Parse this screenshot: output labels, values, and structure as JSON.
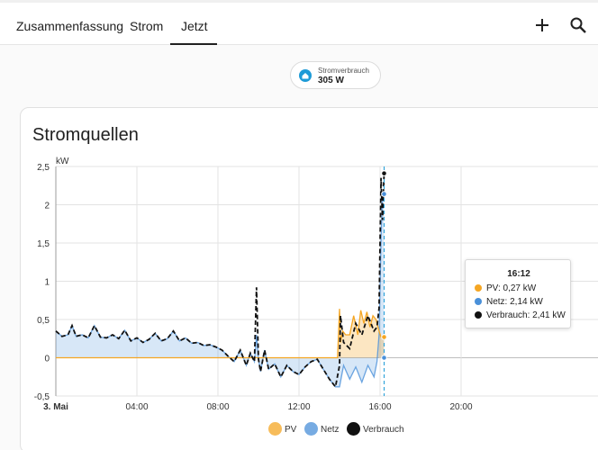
{
  "tabs": [
    {
      "label": "Zusammenfassung",
      "active": false
    },
    {
      "label": "Strom",
      "active": false
    },
    {
      "label": "Jetzt",
      "active": true
    }
  ],
  "toolbar": {
    "add_icon": "plus-icon",
    "search_icon": "search-icon"
  },
  "badge": {
    "label": "Stromverbrauch",
    "value": "305 W",
    "icon": "home-icon",
    "icon_color": "#1e9bd7"
  },
  "card": {
    "title": "Stromquellen"
  },
  "tooltip": {
    "time": "16:12",
    "rows": [
      {
        "color": "#f5a623",
        "text": "PV: 0,27 kW"
      },
      {
        "color": "#4a90d9",
        "text": "Netz: 2,14 kW"
      },
      {
        "color": "#111111",
        "text": "Verbrauch: 2,41 kW"
      }
    ]
  },
  "legend": [
    {
      "label": "PV",
      "color": "#f5a623"
    },
    {
      "label": "Netz",
      "color": "#4a90d9"
    },
    {
      "label": "Verbrauch",
      "color": "#111111"
    }
  ],
  "chart_data": {
    "type": "line",
    "ylabel": "kW",
    "ylim": [
      -0.5,
      2.5
    ],
    "xlim": [
      0,
      24
    ],
    "y_ticks": [
      "2,5",
      "2",
      "1,5",
      "1",
      "0,5",
      "0",
      "-0,5"
    ],
    "x_ticks": [
      "3. Mai",
      "04:00",
      "08:00",
      "12:00",
      "16:00",
      "20:00"
    ],
    "grid": true,
    "legend_placement": "bottom",
    "cursor_time_hours": 16.2,
    "series": [
      {
        "name": "PV",
        "color": "#f5a623",
        "x": [
          0,
          13.9,
          14.0,
          14.05,
          14.15,
          14.3,
          14.5,
          14.7,
          14.9,
          15.05,
          15.2,
          15.35,
          15.5,
          15.65,
          15.8,
          15.95,
          16.05,
          16.2
        ],
        "y": [
          0,
          0,
          0.64,
          0.2,
          0.35,
          0.3,
          0.3,
          0.55,
          0.3,
          0.62,
          0.45,
          0.6,
          0.4,
          0.55,
          0.5,
          0.35,
          0.27,
          0.27
        ]
      },
      {
        "name": "Netz",
        "color": "#4a90d9",
        "x": [
          0,
          0.3,
          0.6,
          0.8,
          1.0,
          1.3,
          1.6,
          1.9,
          2.2,
          2.5,
          2.8,
          3.1,
          3.4,
          3.7,
          4.0,
          4.3,
          4.6,
          4.9,
          5.2,
          5.5,
          5.8,
          6.1,
          6.4,
          6.7,
          7.0,
          7.3,
          7.6,
          7.9,
          8.2,
          8.5,
          8.8,
          9.1,
          9.4,
          9.6,
          9.8,
          9.9,
          10.0,
          10.1,
          10.3,
          10.5,
          10.8,
          11.1,
          11.4,
          11.7,
          12.0,
          12.3,
          12.6,
          12.9,
          13.2,
          13.5,
          13.8,
          14.0,
          14.2,
          14.5,
          14.8,
          15.1,
          15.4,
          15.7,
          15.85,
          15.95,
          16.05,
          16.12,
          16.2
        ],
        "y": [
          0.35,
          0.28,
          0.3,
          0.42,
          0.28,
          0.3,
          0.26,
          0.42,
          0.27,
          0.26,
          0.3,
          0.25,
          0.36,
          0.22,
          0.26,
          0.2,
          0.24,
          0.32,
          0.22,
          0.25,
          0.35,
          0.22,
          0.26,
          0.19,
          0.2,
          0.16,
          0.17,
          0.14,
          0.1,
          0.02,
          -0.05,
          0.1,
          -0.1,
          0.06,
          -0.05,
          0.3,
          -0.02,
          -0.18,
          0.1,
          -0.15,
          -0.08,
          -0.25,
          -0.1,
          -0.18,
          -0.22,
          -0.12,
          -0.05,
          -0.02,
          -0.15,
          -0.28,
          -0.38,
          -0.38,
          -0.1,
          -0.28,
          -0.12,
          -0.32,
          -0.1,
          -0.25,
          -0.05,
          0.3,
          1.55,
          2.14,
          2.14
        ]
      },
      {
        "name": "Verbrauch",
        "color": "#111111",
        "x": [
          0,
          0.3,
          0.6,
          0.8,
          1.0,
          1.3,
          1.6,
          1.9,
          2.2,
          2.5,
          2.8,
          3.1,
          3.4,
          3.7,
          4.0,
          4.3,
          4.6,
          4.9,
          5.2,
          5.5,
          5.8,
          6.1,
          6.4,
          6.7,
          7.0,
          7.3,
          7.6,
          7.9,
          8.2,
          8.5,
          8.8,
          9.1,
          9.4,
          9.6,
          9.8,
          9.9,
          10.0,
          10.1,
          10.3,
          10.5,
          10.8,
          11.1,
          11.4,
          11.7,
          12.0,
          12.3,
          12.6,
          12.9,
          13.2,
          13.5,
          13.8,
          14.0,
          14.05,
          14.2,
          14.5,
          14.8,
          15.1,
          15.4,
          15.7,
          15.85,
          15.95,
          16.05,
          16.12,
          16.2
        ],
        "y": [
          0.35,
          0.28,
          0.3,
          0.42,
          0.28,
          0.3,
          0.26,
          0.42,
          0.27,
          0.26,
          0.3,
          0.25,
          0.36,
          0.22,
          0.26,
          0.2,
          0.24,
          0.32,
          0.22,
          0.25,
          0.35,
          0.22,
          0.26,
          0.19,
          0.2,
          0.16,
          0.17,
          0.14,
          0.1,
          0.02,
          -0.05,
          0.1,
          -0.1,
          0.06,
          -0.05,
          0.92,
          -0.02,
          -0.18,
          0.1,
          -0.15,
          -0.08,
          -0.25,
          -0.1,
          -0.18,
          -0.22,
          -0.12,
          -0.05,
          -0.02,
          -0.15,
          -0.28,
          -0.38,
          -0.1,
          0.55,
          0.2,
          0.12,
          0.45,
          0.3,
          0.55,
          0.35,
          0.4,
          0.65,
          2.35,
          1.8,
          2.41
        ]
      }
    ]
  }
}
